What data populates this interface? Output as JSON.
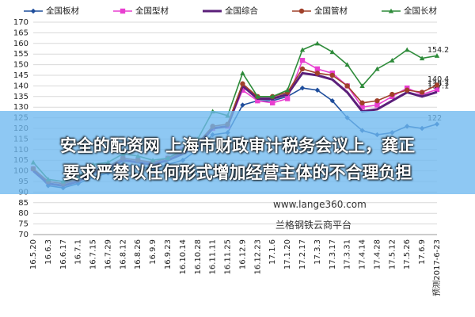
{
  "chart_data": {
    "type": "line",
    "categories": [
      "16.5.20",
      "16.6.3",
      "16.6.17",
      "16.7.1",
      "16.7.15",
      "16.7.29",
      "16.8.12",
      "16.8.26",
      "16.9.9",
      "16.9.23",
      "16.10.14",
      "16.10.28",
      "16.11.11",
      "16.11.25",
      "16.12.9",
      "16.12.23",
      "17.1.6",
      "17.1.20",
      "17.2.17",
      "17.3.3",
      "17.3.17",
      "17.3.31",
      "17.4.14",
      "17.4.28",
      "17.5.12",
      "17.5.26",
      "17.6.9",
      "预测2017-6-23"
    ],
    "series": [
      {
        "name": "全国板材",
        "color": "#1f4e9c",
        "marker": "diamond",
        "values": [
          101,
          93,
          92,
          94,
          97,
          99,
          103,
          102,
          101,
          103,
          105,
          110,
          117,
          118,
          131,
          133,
          133,
          135,
          139,
          138,
          133,
          125,
          119,
          117,
          118,
          121,
          120,
          122
        ]
      },
      {
        "name": "全国型材",
        "color": "#e83fd0",
        "marker": "square",
        "values": [
          101,
          95,
          94,
          96,
          100,
          102,
          106,
          105,
          104,
          106,
          110,
          113,
          120,
          121,
          138,
          133,
          132,
          134,
          152,
          148,
          146,
          140,
          130,
          131,
          135,
          139,
          136,
          138.3
        ]
      },
      {
        "name": "全国综合",
        "color": "#5b1f7a",
        "marker": "none",
        "values": [
          100,
          94,
          93,
          95,
          99,
          101,
          105,
          104,
          103,
          105,
          108,
          112,
          120,
          121,
          140,
          134,
          134,
          136,
          146,
          145,
          143,
          137,
          128,
          129,
          133,
          137,
          135,
          137.1
        ]
      },
      {
        "name": "全国管材",
        "color": "#a0402a",
        "marker": "circle",
        "values": [
          101,
          95,
          94,
          96,
          100,
          102,
          106,
          105,
          104,
          106,
          109,
          113,
          121,
          122,
          141,
          135,
          135,
          137,
          148,
          146,
          145,
          140,
          132,
          133,
          136,
          138,
          137,
          140.4
        ]
      },
      {
        "name": "全国长材",
        "color": "#2e8b3a",
        "marker": "triangle",
        "values": [
          104,
          96,
          95,
          97,
          103,
          104,
          108,
          107,
          105,
          106,
          110,
          115,
          128,
          126,
          146,
          135,
          135,
          138,
          157,
          160,
          156,
          150,
          140,
          148,
          152,
          157,
          153,
          154.2
        ]
      }
    ],
    "ylim": [
      70,
      170
    ],
    "yticks": [
      70,
      75,
      80,
      85,
      90,
      95,
      100,
      105,
      110,
      115,
      120,
      125,
      130,
      135,
      140,
      145,
      150,
      155,
      160,
      165,
      170
    ],
    "grid": true
  },
  "overlay": {
    "headline": [
      "安全的配资网 上海市财政审计税务会议上，龚正",
      "要求严禁以任何形式增加经营主体的不合理负担"
    ],
    "watermark": "www.lange360.com",
    "platform": "兰格钢铁云商平台"
  }
}
